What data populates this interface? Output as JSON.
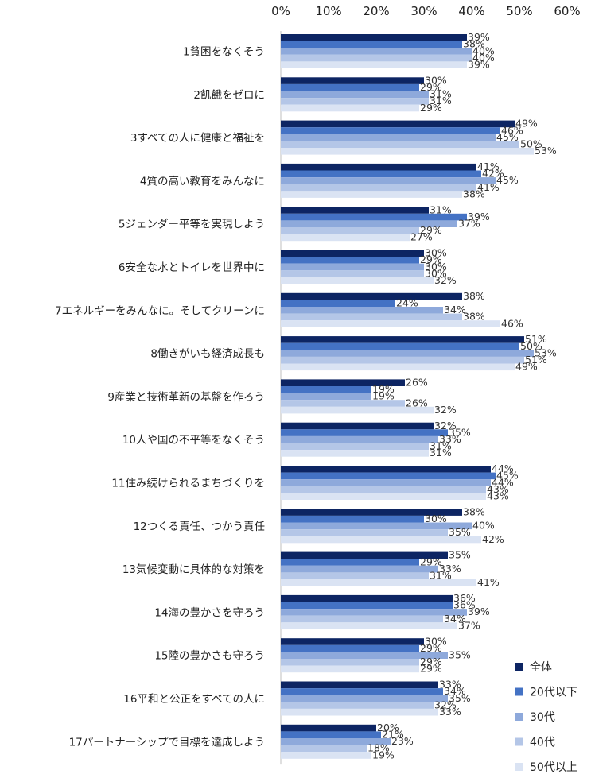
{
  "chart_data": {
    "type": "bar",
    "orientation": "horizontal",
    "xlim": [
      0,
      60
    ],
    "x_ticks": [
      "0%",
      "10%",
      "20%",
      "30%",
      "40%",
      "50%",
      "60%"
    ],
    "x_tick_position": "top",
    "grid": false,
    "legend_position": "bottom-right",
    "value_suffix": "%",
    "categories": [
      "1貧困をなくそう",
      "2飢餓をゼロに",
      "3すべての人に健康と福祉を",
      "4質の高い教育をみんなに",
      "5ジェンダー平等を実現しよう",
      "6安全な水とトイレを世界中に",
      "7エネルギーをみんなに。そしてクリーンに",
      "8働きがいも経済成長も",
      "9産業と技術革新の基盤を作ろう",
      "10人や国の不平等をなくそう",
      "11住み続けられるまちづくりを",
      "12つくる責任、つかう責任",
      "13気候変動に具体的な対策を",
      "14海の豊かさを守ろう",
      "15陸の豊かさも守ろう",
      "16平和と公正をすべての人に",
      "17パートナーシップで目標を達成しよう"
    ],
    "series": [
      {
        "name": "全体",
        "color": "#0d2563",
        "values": [
          39,
          30,
          49,
          41,
          31,
          30,
          38,
          51,
          26,
          32,
          44,
          38,
          35,
          36,
          30,
          33,
          20
        ]
      },
      {
        "name": "20代以下",
        "color": "#4472c4",
        "values": [
          38,
          29,
          46,
          42,
          39,
          29,
          24,
          50,
          19,
          35,
          45,
          30,
          29,
          36,
          29,
          34,
          21
        ]
      },
      {
        "name": "30代",
        "color": "#8ea9db",
        "values": [
          40,
          31,
          45,
          45,
          37,
          30,
          34,
          53,
          19,
          33,
          44,
          40,
          33,
          39,
          35,
          35,
          23
        ]
      },
      {
        "name": "40代",
        "color": "#b4c6e7",
        "values": [
          40,
          31,
          50,
          41,
          29,
          30,
          38,
          51,
          26,
          31,
          43,
          35,
          31,
          34,
          29,
          32,
          18
        ]
      },
      {
        "name": "50代以上",
        "color": "#dae3f3",
        "values": [
          39,
          29,
          53,
          38,
          27,
          32,
          46,
          49,
          32,
          31,
          43,
          42,
          41,
          37,
          29,
          33,
          19
        ]
      }
    ]
  }
}
